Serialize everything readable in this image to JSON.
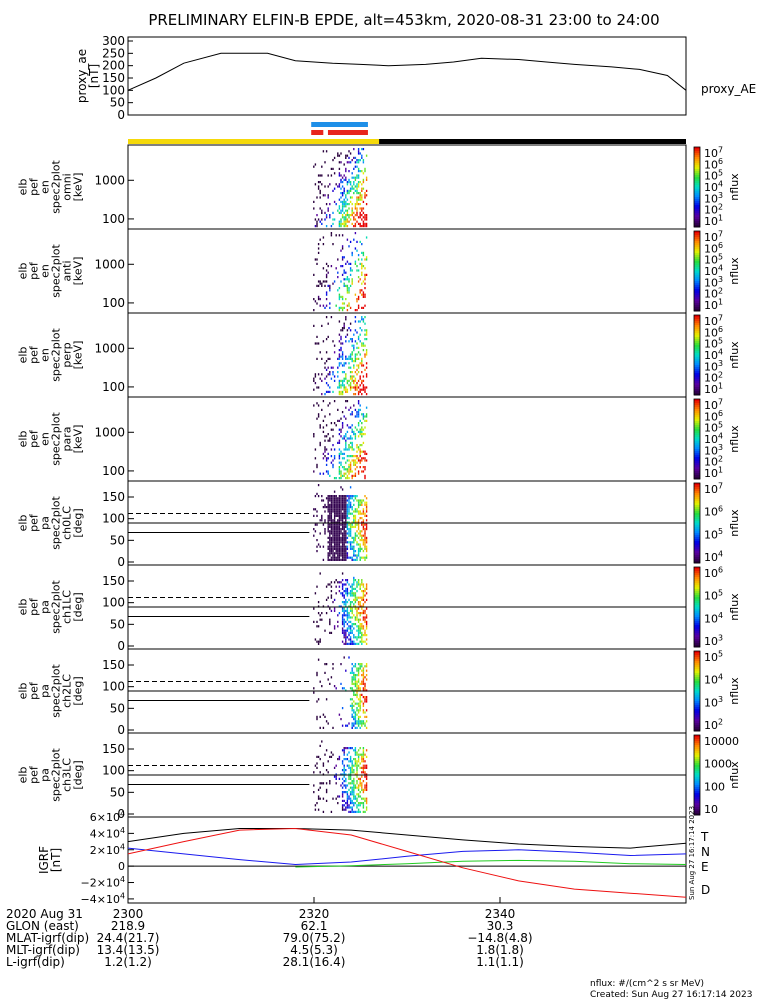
{
  "title": "PRELIMINARY ELFIN-B EPDE, alt=453km, 2020-08-31 23:00 to 24:00",
  "colors": {
    "sci_blue": "#1e8fe8",
    "sci_red": "#e8241c",
    "sunlit": "#f5d90a",
    "shadow": "#000000",
    "igrf_T": "#000000",
    "igrf_N": "#1a1aee",
    "igrf_E": "#22cc22",
    "igrf_D": "#ee1111"
  },
  "chart_data": [
    {
      "type": "line",
      "id": "proxy_ae",
      "ylabel_lines": [
        "proxy_ae",
        "[nT]"
      ],
      "legend": "proxy_AE",
      "ylim": [
        0,
        300
      ],
      "yticks": [
        "300",
        "250",
        "200",
        "150",
        "100",
        "50",
        "0"
      ],
      "x": [
        0,
        3,
        6,
        10,
        15,
        18,
        22,
        25,
        28,
        32,
        35,
        38,
        42,
        45,
        48,
        52,
        55,
        58,
        60
      ],
      "values": [
        100,
        150,
        210,
        250,
        250,
        220,
        210,
        205,
        200,
        205,
        215,
        230,
        225,
        215,
        205,
        195,
        185,
        160,
        100
      ]
    },
    {
      "type": "heatmap",
      "id": "en-omni",
      "ylabel_lines": [
        "elb",
        "pef",
        "en",
        "spec2plot",
        "omni",
        "[keV]"
      ],
      "yticks": [
        "1000",
        "100"
      ],
      "colorbar_ticks": [
        "10^7",
        "10^6",
        "10^5",
        "10^4",
        "10^3",
        "10^2",
        "10^1"
      ],
      "colorbar_label": "nflux"
    },
    {
      "type": "heatmap",
      "id": "en-anti",
      "ylabel_lines": [
        "elb",
        "pef",
        "en",
        "spec2plot",
        "anti",
        "[keV]"
      ],
      "yticks": [
        "1000",
        "100"
      ],
      "colorbar_ticks": [
        "10^7",
        "10^6",
        "10^5",
        "10^4",
        "10^3",
        "10^2",
        "10^1"
      ],
      "colorbar_label": "nflux"
    },
    {
      "type": "heatmap",
      "id": "en-perp",
      "ylabel_lines": [
        "elb",
        "pef",
        "en",
        "spec2plot",
        "perp",
        "[keV]"
      ],
      "yticks": [
        "1000",
        "100"
      ],
      "colorbar_ticks": [
        "10^7",
        "10^6",
        "10^5",
        "10^4",
        "10^3",
        "10^2",
        "10^1"
      ],
      "colorbar_label": "nflux"
    },
    {
      "type": "heatmap",
      "id": "en-para",
      "ylabel_lines": [
        "elb",
        "pef",
        "en",
        "spec2plot",
        "para",
        "[keV]"
      ],
      "yticks": [
        "1000",
        "100"
      ],
      "colorbar_ticks": [
        "10^7",
        "10^6",
        "10^5",
        "10^4",
        "10^3",
        "10^2",
        "10^1"
      ],
      "colorbar_label": "nflux"
    },
    {
      "type": "heatmap",
      "id": "pa-ch0",
      "ylabel_lines": [
        "elb",
        "pef",
        "pa",
        "spec2plot",
        "ch0LC",
        "[deg]"
      ],
      "yticks": [
        "150",
        "100",
        "50",
        "0"
      ],
      "colorbar_ticks": [
        "10^7",
        "10^6",
        "10^5",
        "10^4"
      ],
      "colorbar_label": "nflux"
    },
    {
      "type": "heatmap",
      "id": "pa-ch1",
      "ylabel_lines": [
        "elb",
        "pef",
        "pa",
        "spec2plot",
        "ch1LC",
        "[deg]"
      ],
      "yticks": [
        "150",
        "100",
        "50",
        "0"
      ],
      "colorbar_ticks": [
        "10^6",
        "10^5",
        "10^4",
        "10^3"
      ],
      "colorbar_label": "nflux"
    },
    {
      "type": "heatmap",
      "id": "pa-ch2",
      "ylabel_lines": [
        "elb",
        "pef",
        "pa",
        "spec2plot",
        "ch2LC",
        "[deg]"
      ],
      "yticks": [
        "150",
        "100",
        "50",
        "0"
      ],
      "colorbar_ticks": [
        "10^5",
        "10^4",
        "10^3",
        "10^2"
      ],
      "colorbar_label": "nflux"
    },
    {
      "type": "heatmap",
      "id": "pa-ch3",
      "ylabel_lines": [
        "elb",
        "pef",
        "pa",
        "spec2plot",
        "ch3LC",
        "[deg]"
      ],
      "yticks": [
        "150",
        "100",
        "50",
        "0"
      ],
      "colorbar_ticks": [
        "10000",
        "1000",
        "100",
        "10"
      ],
      "colorbar_label": "nflux"
    },
    {
      "type": "line",
      "id": "igrf",
      "ylabel_lines": [
        "IGRF",
        "[nT]"
      ],
      "yticks": [
        "6×10^4",
        "4×10^4",
        "2×10^4",
        "0",
        "−2×10^4",
        "−4×10^4"
      ],
      "ylim": [
        -45000,
        60000
      ],
      "x": [
        0,
        6,
        12,
        18,
        24,
        30,
        36,
        42,
        48,
        54,
        60
      ],
      "series": [
        {
          "name": "T",
          "values": [
            30000,
            40000,
            46000,
            46000,
            44000,
            38000,
            32000,
            27000,
            24000,
            22000,
            28000
          ]
        },
        {
          "name": "N",
          "values": [
            22000,
            15000,
            8000,
            2000,
            5000,
            12000,
            18000,
            20000,
            17000,
            13000,
            15000
          ]
        },
        {
          "name": "E",
          "values": [
            null,
            null,
            null,
            -1000,
            500,
            3000,
            6000,
            7000,
            6000,
            3000,
            2000
          ]
        },
        {
          "name": "D",
          "values": [
            15000,
            30000,
            44000,
            46000,
            38000,
            18000,
            -2000,
            -18000,
            -28000,
            -33000,
            -38000
          ]
        }
      ]
    }
  ],
  "xaxis": {
    "ticks": [
      "2300",
      "2320",
      "2340"
    ],
    "rows": [
      {
        "label": "2020 Aug 31",
        "values": [
          "",
          "",
          ""
        ]
      },
      {
        "label": "GLON (east)",
        "values": [
          "218.9",
          "62.1",
          "30.3"
        ]
      },
      {
        "label": "MLAT-igrf(dip)",
        "values": [
          "24.4(21.7)",
          "79.0(75.2)",
          "−14.8(4.8)"
        ]
      },
      {
        "label": "MLT-igrf(dip)",
        "values": [
          "13.4(13.5)",
          "4.5(5.3)",
          "1.8(1.8)"
        ]
      },
      {
        "label": "L-igrf(dip)",
        "values": [
          "1.2(1.2)",
          "28.1(16.4)",
          "1.1(1.1)"
        ]
      }
    ]
  },
  "footer": {
    "units": "nflux: #/(cm^2 s sr MeV)",
    "created": "Created: Sun Aug 27 16:17:14 2023",
    "side_stamp": "Sun Aug 27 16:17:14 2023"
  }
}
